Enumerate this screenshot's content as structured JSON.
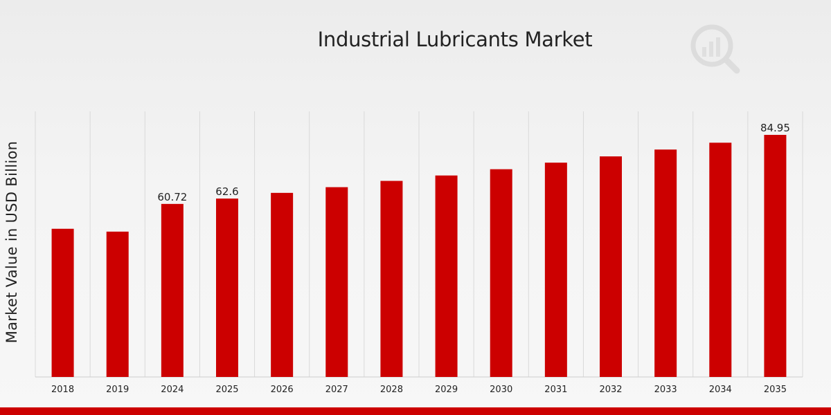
{
  "title": "Industrial Lubricants Market",
  "ylabel": "Market Value in USD Billion",
  "watermark_icon": "chart-magnifier-logo-icon",
  "colors": {
    "bar": "#cc0000",
    "bottom_bar": "#cc0000",
    "grid": "#d9d9d9",
    "text": "#222222"
  },
  "chart_data": {
    "type": "bar",
    "title": "Industrial Lubricants Market",
    "xlabel": "",
    "ylabel": "Market Value in USD Billion",
    "categories": [
      "2018",
      "2019",
      "2024",
      "2025",
      "2026",
      "2027",
      "2028",
      "2029",
      "2030",
      "2031",
      "2032",
      "2033",
      "2034",
      "2035"
    ],
    "values": [
      52.0,
      51.0,
      60.72,
      62.6,
      64.6,
      66.6,
      68.8,
      70.7,
      72.9,
      75.2,
      77.4,
      79.8,
      82.2,
      84.95
    ],
    "data_labels": {
      "2024": "60.72",
      "2025": "62.6",
      "2035": "84.95"
    },
    "ylim": [
      0,
      90
    ],
    "grid": {
      "vertical": true,
      "horizontal": false
    },
    "legend": "none"
  }
}
